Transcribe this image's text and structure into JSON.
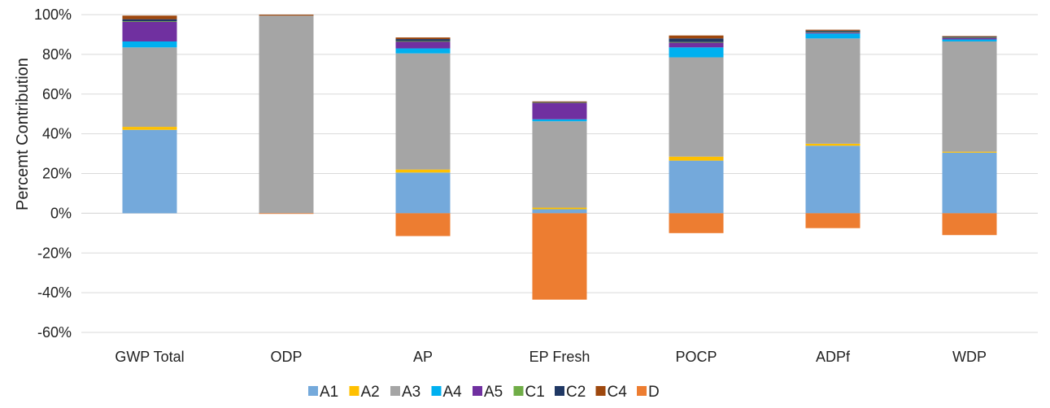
{
  "chart_data": {
    "type": "bar",
    "stacked": true,
    "title": "",
    "xlabel": "",
    "ylabel": "Percemt Contribution",
    "ylim": [
      -60,
      100
    ],
    "yticks": [
      100,
      80,
      60,
      40,
      20,
      0,
      -20,
      -40,
      -60
    ],
    "ytick_labels": [
      "100%",
      "80%",
      "60%",
      "40%",
      "20%",
      "0%",
      "-20%",
      "-40%",
      "-60%"
    ],
    "grid": "horizontal",
    "legend_position": "bottom",
    "categories": [
      "GWP Total",
      "ODP",
      "AP",
      "EP Fresh",
      "POCP",
      "ADPf",
      "WDP"
    ],
    "series": [
      {
        "name": "A1",
        "color": "#74A9DB",
        "values": [
          42,
          0,
          20.5,
          2,
          26.5,
          34,
          30.5
        ]
      },
      {
        "name": "A2",
        "color": "#FFC000",
        "values": [
          1.5,
          0,
          1.5,
          0.8,
          2,
          1,
          0.5
        ]
      },
      {
        "name": "A3",
        "color": "#A5A5A5",
        "values": [
          40,
          99.5,
          58.5,
          43.5,
          50,
          53,
          55.5
        ]
      },
      {
        "name": "A4",
        "color": "#00B0F0",
        "values": [
          3,
          0,
          2.5,
          1,
          5,
          2.5,
          1
        ]
      },
      {
        "name": "A5",
        "color": "#7030A0",
        "values": [
          10,
          0,
          3.5,
          8.5,
          2.5,
          0.6,
          1
        ]
      },
      {
        "name": "C1",
        "color": "#70AD47",
        "values": [
          0.2,
          0,
          0.2,
          0.1,
          0.2,
          0.2,
          0.1
        ]
      },
      {
        "name": "C2",
        "color": "#203864",
        "values": [
          1,
          0,
          1,
          0.3,
          1.8,
          0.6,
          0.4
        ]
      },
      {
        "name": "C4",
        "color": "#9E480E",
        "values": [
          1.8,
          0.5,
          0.8,
          0.1,
          1.5,
          0.5,
          0.2
        ]
      },
      {
        "name": "D",
        "color": "#ED7D31",
        "values": [
          0,
          -0.3,
          -11.5,
          -43.5,
          -10,
          -7.5,
          -11
        ]
      }
    ]
  }
}
